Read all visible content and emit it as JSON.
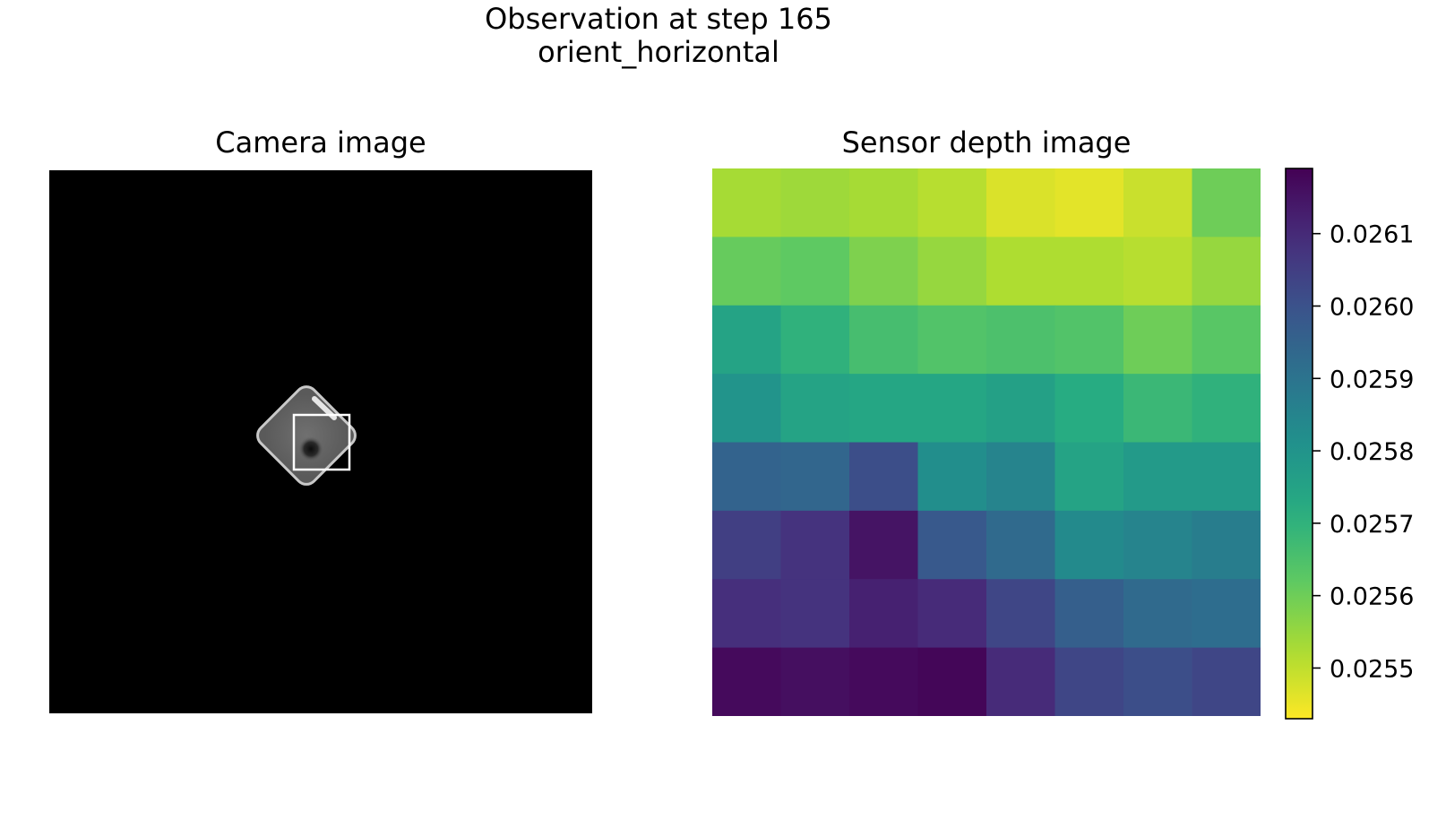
{
  "figure": {
    "title_line1": "Observation at step 165",
    "title_line2": "orient_horizontal"
  },
  "chart_data": [
    {
      "type": "image",
      "title": "Camera image",
      "content": "grayscale camera frame: black background with a rotated rounded square object and a white sensor-patch rectangle"
    },
    {
      "type": "heatmap",
      "title": "Sensor depth image",
      "colormap": "viridis_r",
      "vmin": 0.02543,
      "vmax": 0.02619,
      "grid": false,
      "values": [
        [
          0.02553,
          0.02554,
          0.02553,
          0.02551,
          0.02547,
          0.02546,
          0.02549,
          0.0256
        ],
        [
          0.02561,
          0.02562,
          0.02558,
          0.02555,
          0.02552,
          0.02552,
          0.02551,
          0.02555
        ],
        [
          0.02575,
          0.0257,
          0.02566,
          0.02564,
          0.02565,
          0.02564,
          0.0256,
          0.02563
        ],
        [
          0.0258,
          0.02575,
          0.02574,
          0.02574,
          0.02576,
          0.02572,
          0.02568,
          0.0257
        ],
        [
          0.02595,
          0.02594,
          0.02601,
          0.02582,
          0.02585,
          0.02575,
          0.02578,
          0.02578
        ],
        [
          0.02605,
          0.02608,
          0.02615,
          0.02598,
          0.02593,
          0.02583,
          0.02585,
          0.02587
        ],
        [
          0.02609,
          0.02608,
          0.02612,
          0.0261,
          0.02603,
          0.02596,
          0.02593,
          0.02592
        ],
        [
          0.02617,
          0.02616,
          0.02617,
          0.02618,
          0.0261,
          0.02603,
          0.02601,
          0.02603
        ]
      ],
      "colorbar": {
        "ticks": [
          0.0255,
          0.0256,
          0.0257,
          0.0258,
          0.0259,
          0.026,
          0.0261
        ],
        "tick_labels": [
          "0.0255",
          "0.0256",
          "0.0257",
          "0.0258",
          "0.0259",
          "0.0260",
          "0.0261"
        ]
      }
    }
  ]
}
